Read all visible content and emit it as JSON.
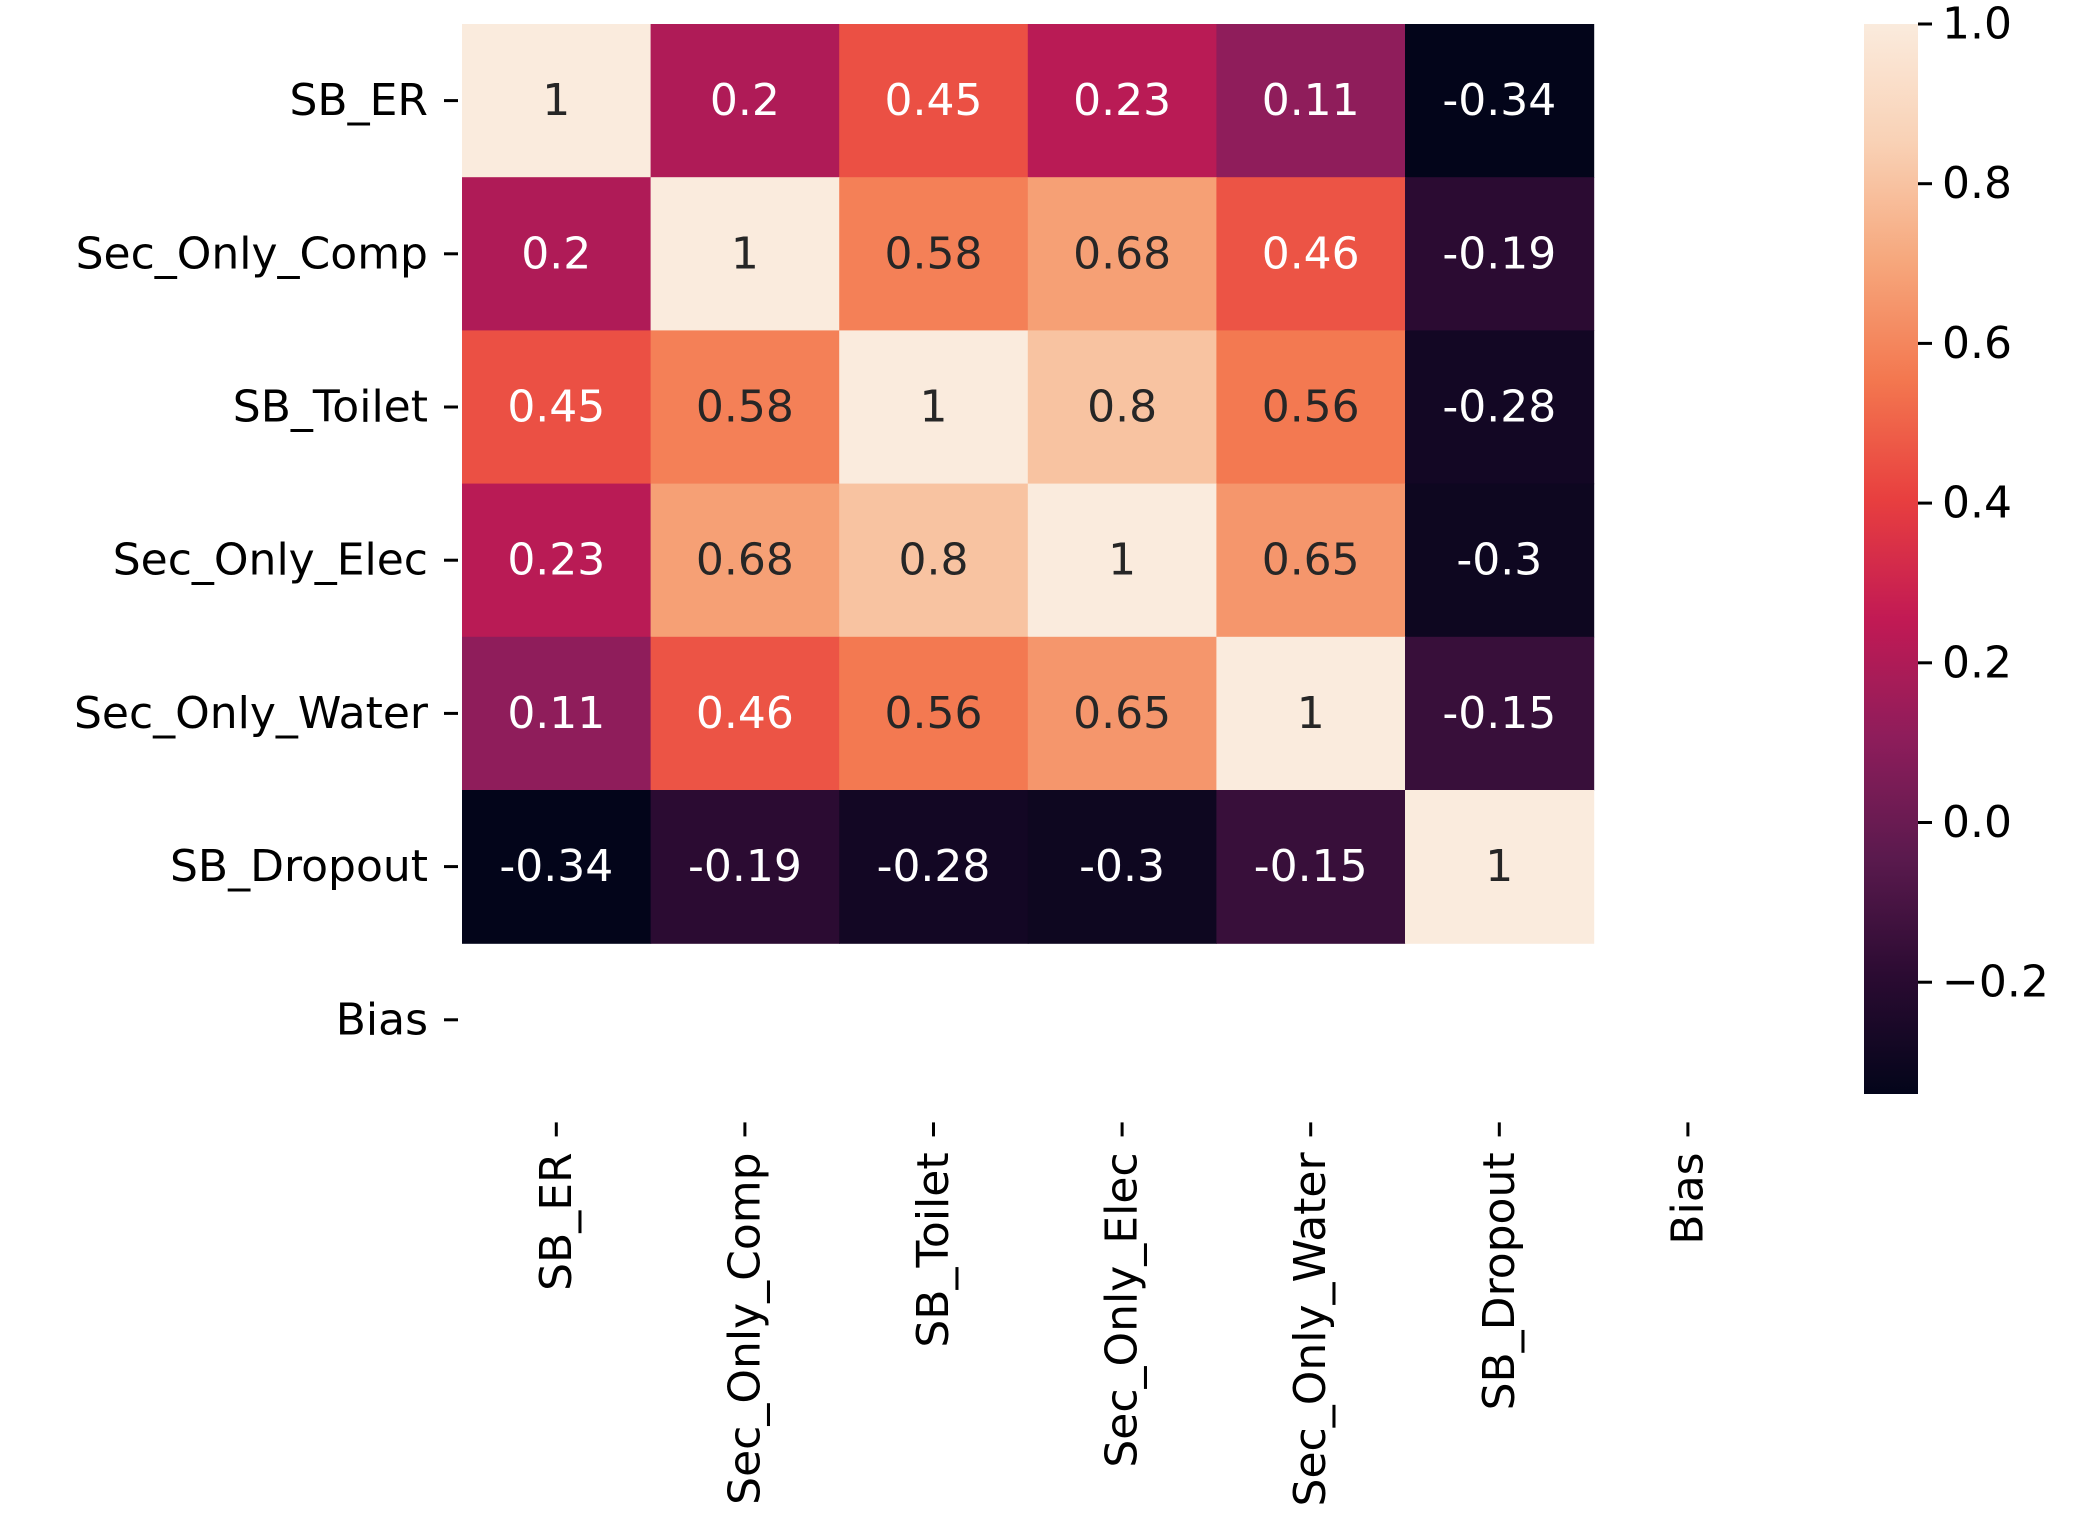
{
  "chart_data": {
    "type": "heatmap",
    "x_labels": [
      "SB_ER",
      "Sec_Only_Comp",
      "SB_Toilet",
      "Sec_Only_Elec",
      "Sec_Only_Water",
      "SB_Dropout",
      "Bias"
    ],
    "y_labels": [
      "SB_ER",
      "Sec_Only_Comp",
      "SB_Toilet",
      "Sec_Only_Elec",
      "Sec_Only_Water",
      "SB_Dropout",
      "Bias"
    ],
    "values": [
      [
        1,
        0.2,
        0.45,
        0.23,
        0.11,
        -0.34,
        null
      ],
      [
        0.2,
        1,
        0.58,
        0.68,
        0.46,
        -0.19,
        null
      ],
      [
        0.45,
        0.58,
        1,
        0.8,
        0.56,
        -0.28,
        null
      ],
      [
        0.23,
        0.68,
        0.8,
        1,
        0.65,
        -0.3,
        null
      ],
      [
        0.11,
        0.46,
        0.56,
        0.65,
        1,
        -0.15,
        null
      ],
      [
        -0.34,
        -0.19,
        -0.28,
        -0.3,
        -0.15,
        1,
        null
      ],
      [
        null,
        null,
        null,
        null,
        null,
        null,
        null
      ]
    ],
    "annotations": [
      [
        "1",
        "0.2",
        "0.45",
        "0.23",
        "0.11",
        "-0.34",
        ""
      ],
      [
        "0.2",
        "1",
        "0.58",
        "0.68",
        "0.46",
        "-0.19",
        ""
      ],
      [
        "0.45",
        "0.58",
        "1",
        "0.8",
        "0.56",
        "-0.28",
        ""
      ],
      [
        "0.23",
        "0.68",
        "0.8",
        "1",
        "0.65",
        "-0.3",
        ""
      ],
      [
        "0.11",
        "0.46",
        "0.56",
        "0.65",
        "1",
        "-0.15",
        ""
      ],
      [
        "-0.34",
        "-0.19",
        "-0.28",
        "-0.3",
        "-0.15",
        "1",
        ""
      ],
      [
        "",
        "",
        "",
        "",
        "",
        "",
        ""
      ]
    ],
    "colorbar": {
      "range": [
        -0.34,
        1.0
      ],
      "ticks": [
        -0.2,
        0.0,
        0.2,
        0.4,
        0.6,
        0.8,
        1.0
      ],
      "tick_labels": [
        "−0.2",
        "0.0",
        "0.2",
        "0.4",
        "0.6",
        "0.8",
        "1.0"
      ],
      "colormap": "rocket",
      "location": "right"
    },
    "colormap_stops": [
      "#03051a",
      "#2b0b32",
      "#5b1a4e",
      "#8e1d5b",
      "#c21a54",
      "#e83f3f",
      "#f3774f",
      "#f6a77c",
      "#f9d1b5",
      "#faebdd"
    ],
    "annotation_colors": {
      "on_dark": "#ffffff",
      "on_light": "#262626"
    },
    "title": "",
    "xlabel": "",
    "ylabel": ""
  }
}
